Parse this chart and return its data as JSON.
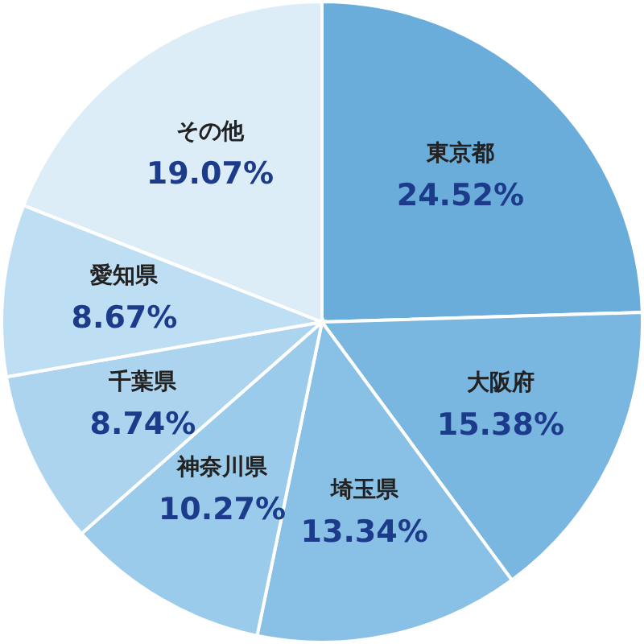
{
  "chart_data": {
    "type": "pie",
    "categories": [
      "東京都",
      "大阪府",
      "埼玉県",
      "神奈川県",
      "千葉県",
      "愛知県",
      "その他"
    ],
    "values": [
      24.52,
      15.38,
      13.34,
      10.27,
      8.74,
      8.67,
      19.07
    ],
    "colors": [
      "#6aaddb",
      "#79b7e0",
      "#89c1e6",
      "#9bcbea",
      "#acd4ef",
      "#bedef3",
      "#ddedf8"
    ],
    "value_labels": [
      "24.52%",
      "15.38%",
      "13.34%",
      "10.27%",
      "8.74%",
      "8.67%",
      "19.07%"
    ]
  }
}
